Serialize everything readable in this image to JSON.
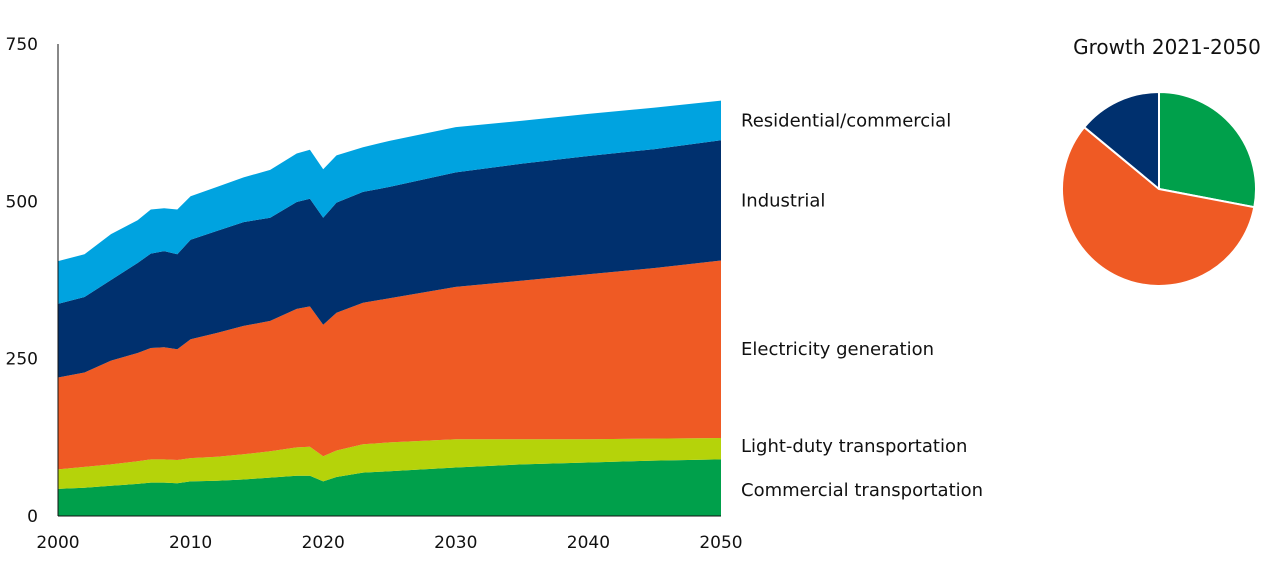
{
  "chart_data": [
    {
      "type": "area",
      "stacked": true,
      "title": "",
      "xlabel": "",
      "ylabel": "",
      "xlim": [
        2000,
        2050
      ],
      "ylim": [
        0,
        750
      ],
      "x_ticks": [
        "2000",
        "2010",
        "2020",
        "2030",
        "2040",
        "2050"
      ],
      "y_ticks": [
        "0",
        "250",
        "500",
        "750"
      ],
      "grid": false,
      "legend": "inline-right",
      "x": [
        2000,
        2002,
        2004,
        2006,
        2007,
        2008,
        2009,
        2010,
        2012,
        2014,
        2016,
        2018,
        2019,
        2020,
        2021,
        2023,
        2025,
        2030,
        2035,
        2040,
        2045,
        2050
      ],
      "series": [
        {
          "name": "Commercial transportation",
          "color": "#00a04b",
          "values": [
            43,
            45,
            48,
            51,
            53,
            53,
            52,
            55,
            56,
            58,
            61,
            64,
            64,
            55,
            62,
            69,
            71,
            77,
            82,
            85,
            88,
            90
          ]
        },
        {
          "name": "Light-duty transportation",
          "color": "#b5d30a",
          "values": [
            31,
            33,
            34,
            36,
            37,
            37,
            37,
            37,
            38,
            40,
            42,
            45,
            46,
            40,
            42,
            45,
            46,
            45,
            40,
            37,
            35,
            34
          ]
        },
        {
          "name": "Electricity generation",
          "color": "#ef5a24",
          "values": [
            146,
            150,
            165,
            172,
            177,
            178,
            176,
            189,
            197,
            204,
            207,
            220,
            223,
            209,
            219,
            225,
            229,
            242,
            252,
            262,
            271,
            282
          ]
        },
        {
          "name": "Industrial",
          "color": "#00306e",
          "values": [
            117,
            120,
            128,
            143,
            150,
            153,
            151,
            158,
            162,
            165,
            164,
            170,
            171,
            170,
            175,
            176,
            177,
            182,
            186,
            188,
            189,
            191
          ]
        },
        {
          "name": "Residential/commercial",
          "color": "#00a3e0",
          "values": [
            68,
            68,
            73,
            68,
            70,
            68,
            71,
            69,
            70,
            71,
            76,
            77,
            78,
            77,
            75,
            71,
            73,
            72,
            68,
            67,
            66,
            63
          ]
        }
      ],
      "series_labels": [
        "Residential/commercial",
        "Industrial",
        "Electricity generation",
        "Light-duty transportation",
        "Commercial transportation"
      ]
    },
    {
      "type": "pie",
      "title": "Growth 2021-2050",
      "slices": [
        {
          "label": "Commercial transportation",
          "value": 28,
          "color": "#00a04b"
        },
        {
          "label": "Electricity generation",
          "value": 58,
          "color": "#ef5a24"
        },
        {
          "label": "Industrial",
          "value": 14,
          "color": "#00306e"
        }
      ]
    }
  ]
}
